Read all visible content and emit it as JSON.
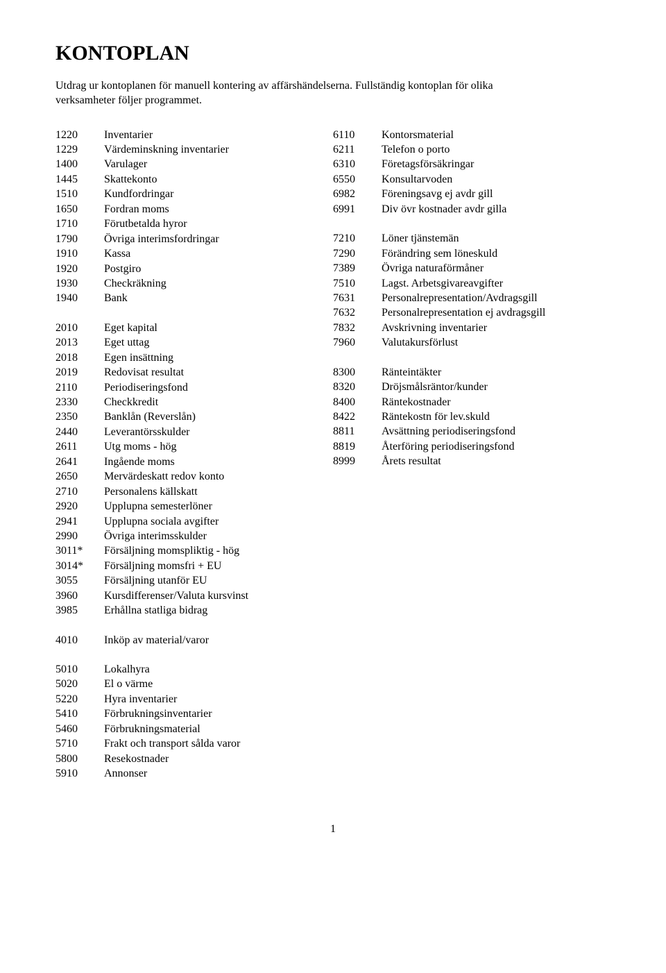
{
  "title": "KONTOPLAN",
  "intro": "Utdrag ur kontoplanen för manuell kontering av affärshändelserna. Fullständig kontoplan för olika verksamheter följer programmet.",
  "left_col": [
    {
      "code": "1220",
      "label": "Inventarier"
    },
    {
      "code": "1229",
      "label": "Värdeminskning inventarier"
    },
    {
      "code": "1400",
      "label": "Varulager"
    },
    {
      "code": "1445",
      "label": "Skattekonto"
    },
    {
      "code": "1510",
      "label": "Kundfordringar"
    },
    {
      "code": "1650",
      "label": "Fordran moms"
    },
    {
      "code": "1710",
      "label": "Förutbetalda hyror"
    },
    {
      "code": "1790",
      "label": "Övriga interimsfordringar"
    },
    {
      "code": "1910",
      "label": "Kassa"
    },
    {
      "code": "1920",
      "label": "Postgiro"
    },
    {
      "code": "1930",
      "label": "Checkräkning"
    },
    {
      "code": "1940",
      "label": "Bank"
    },
    {
      "spacer": true
    },
    {
      "code": "2010",
      "label": "Eget kapital"
    },
    {
      "code": "2013",
      "label": "Eget uttag"
    },
    {
      "code": "2018",
      "label": "Egen insättning"
    },
    {
      "code": "2019",
      "label": "Redovisat resultat"
    },
    {
      "code": "2110",
      "label": "Periodiseringsfond"
    },
    {
      "code": "2330",
      "label": "Checkkredit"
    },
    {
      "code": "2350",
      "label": "Banklån (Reverslån)"
    },
    {
      "code": "2440",
      "label": "Leverantörsskulder"
    },
    {
      "code": "2611",
      "label": "Utg moms - hög"
    },
    {
      "code": "2641",
      "label": "Ingående moms"
    },
    {
      "code": "2650",
      "label": "Mervärdeskatt redov konto"
    },
    {
      "code": "2710",
      "label": "Personalens källskatt"
    },
    {
      "code": "2920",
      "label": "Upplupna semesterlöner"
    },
    {
      "code": "2941",
      "label": "Upplupna sociala avgifter"
    },
    {
      "code": "2990",
      "label": "Övriga interimsskulder"
    },
    {
      "code": "3011*",
      "label": "Försäljning momspliktig - hög"
    },
    {
      "code": "3014*",
      "label": "Försäljning momsfri + EU"
    },
    {
      "code": "3055",
      "label": "Försäljning utanför EU"
    },
    {
      "code": "3960",
      "label": "Kursdifferenser/Valuta kursvinst"
    },
    {
      "code": "3985",
      "label": "Erhållna statliga bidrag"
    },
    {
      "spacer": true
    },
    {
      "code": "4010",
      "label": "Inköp av material/varor"
    },
    {
      "spacer": true
    },
    {
      "code": "5010",
      "label": "Lokalhyra"
    },
    {
      "code": "5020",
      "label": "El o värme"
    },
    {
      "code": "5220",
      "label": "Hyra inventarier"
    },
    {
      "code": "5410",
      "label": "Förbrukningsinventarier"
    },
    {
      "code": "5460",
      "label": "Förbrukningsmaterial"
    },
    {
      "code": "5710",
      "label": "Frakt och transport sålda varor"
    },
    {
      "code": "5800",
      "label": "Resekostnader"
    },
    {
      "code": "5910",
      "label": "Annonser"
    }
  ],
  "right_col": [
    {
      "code": "6110",
      "label": "Kontorsmaterial"
    },
    {
      "code": "6211",
      "label": "Telefon o porto"
    },
    {
      "code": "6310",
      "label": "Företagsförsäkringar"
    },
    {
      "code": "6550",
      "label": "Konsultarvoden"
    },
    {
      "code": "6982",
      "label": "Föreningsavg ej avdr gill"
    },
    {
      "code": "6991",
      "label": "Div övr kostnader avdr gilla"
    },
    {
      "spacer": true
    },
    {
      "code": "7210",
      "label": "Löner tjänstemän"
    },
    {
      "code": "7290",
      "label": "Förändring sem löneskuld"
    },
    {
      "code": "7389",
      "label": "Övriga naturaförmåner"
    },
    {
      "code": "7510",
      "label": "Lagst. Arbetsgivareavgifter"
    },
    {
      "code": "7631",
      "label": "Personalrepresentation/Avdragsgill"
    },
    {
      "code": "7632",
      "label": "Personalrepresentation ej avdragsgill"
    },
    {
      "code": "7832",
      "label": "Avskrivning inventarier"
    },
    {
      "code": "7960",
      "label": "Valutakursförlust"
    },
    {
      "spacer": true
    },
    {
      "code": "8300",
      "label": "Ränteintäkter"
    },
    {
      "code": "8320",
      "label": "Dröjsmålsräntor/kunder"
    },
    {
      "code": "8400",
      "label": "Räntekostnader"
    },
    {
      "code": "8422",
      "label": "Räntekostn för lev.skuld"
    },
    {
      "code": "8811",
      "label": "Avsättning periodiseringsfond"
    },
    {
      "code": "8819",
      "label": "Återföring periodiseringsfond"
    },
    {
      "code": "8999",
      "label": "Årets resultat"
    }
  ],
  "page_number": "1"
}
